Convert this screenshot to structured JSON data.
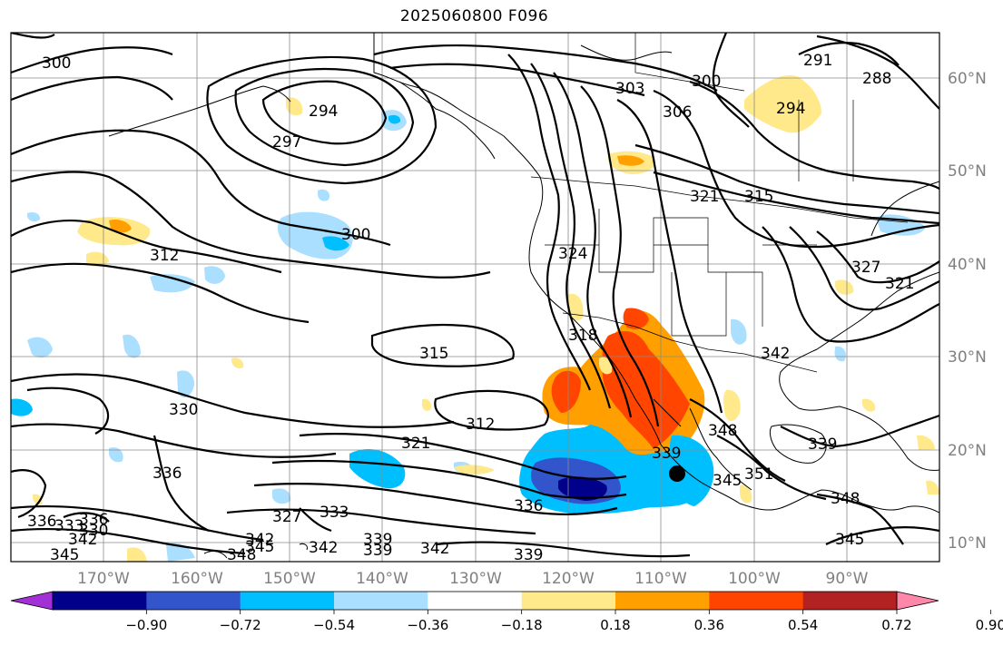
{
  "title": "2025060800 F096",
  "lat_labels": [
    "60°N",
    "50°N",
    "40°N",
    "30°N",
    "20°N",
    "10°N"
  ],
  "lon_labels": [
    "170°W",
    "160°W",
    "150°W",
    "140°W",
    "130°W",
    "120°W",
    "110°W",
    "100°W",
    "90°W"
  ],
  "colorbar": {
    "colors": [
      "#a330d6",
      "#00008b",
      "#3355cc",
      "#00bfff",
      "#aadfff",
      "#ffffff",
      "#ffe98a",
      "#ffa000",
      "#ff4500",
      "#b22222",
      "#ff88aa"
    ],
    "tick_labels": [
      "−0.90",
      "−0.72",
      "−0.54",
      "−0.36",
      "−0.18",
      "0.18",
      "0.36",
      "0.54",
      "0.72",
      "0.90"
    ]
  },
  "contour_labels": [
    "300",
    "294",
    "297",
    "303",
    "300",
    "306",
    "291",
    "288",
    "294",
    "315",
    "312",
    "300",
    "324",
    "315",
    "318",
    "327",
    "321",
    "330",
    "312",
    "321",
    "339",
    "336",
    "336",
    "342",
    "348",
    "351",
    "345",
    "339",
    "348",
    "345",
    "327",
    "333",
    "339",
    "342",
    "333",
    "336",
    "336",
    "330",
    "342",
    "345",
    "348",
    "342",
    "345",
    "339",
    "342",
    "339",
    "321"
  ],
  "storm_marker": "storm-center"
}
